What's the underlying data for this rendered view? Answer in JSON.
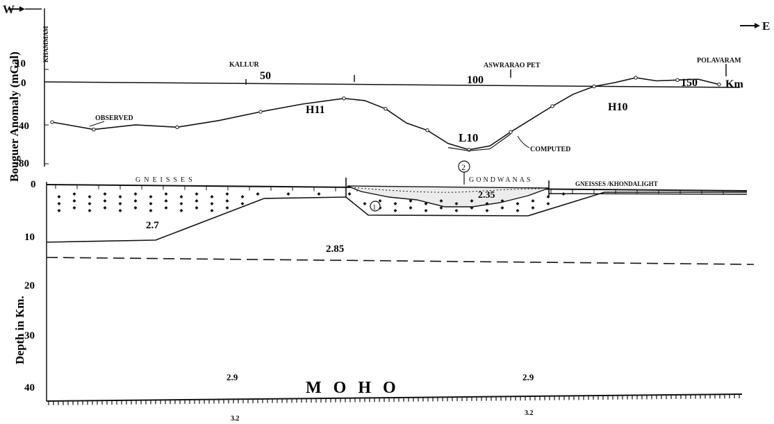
{
  "direction": {
    "west": "W",
    "east": "E"
  },
  "gravity_panel": {
    "ylabel": "Bouguer Anomaly (mGal)",
    "yticks": [
      "10",
      "0",
      "-40",
      "-80"
    ],
    "xticks": [
      "50",
      "100",
      "150"
    ],
    "xunit": "Km",
    "places": [
      "KHAMMAM",
      "KALLUR",
      "ASWRARAO PET",
      "POLAVARAM"
    ],
    "features": [
      "H11",
      "L10",
      "H10"
    ],
    "observed_label": "OBSERVED",
    "computed_label": "COMPUTED"
  },
  "section_panel": {
    "ylabel": "Depth in Km.",
    "yticks": [
      "0",
      "10",
      "20",
      "30",
      "40"
    ],
    "units": [
      "GNEISSES",
      "GONDWANAS",
      "GNEISSES /KHONDALIGHT"
    ],
    "densities": [
      "2.7",
      "2.85",
      "2.35",
      "2.9",
      "2.9",
      "3.2",
      "3.2"
    ],
    "body_markers": [
      "1",
      "2"
    ],
    "moho_label": "MOHO"
  },
  "chart_data": {
    "type": "line",
    "xlabel": "Km",
    "ylabel": "Bouguer Anomaly (mGal)",
    "ylim": [
      -80,
      10
    ],
    "series": [
      {
        "name": "OBSERVED",
        "x": [
          0,
          10,
          20,
          30,
          40,
          50,
          60,
          70,
          75,
          80,
          85,
          90,
          95,
          100,
          105,
          110,
          115,
          120,
          125,
          130,
          135,
          140,
          145,
          150,
          155,
          160
        ],
        "values": [
          -40,
          -47,
          -42,
          -44,
          -37,
          -28,
          -20,
          -14,
          -16,
          -24,
          -38,
          -45,
          -58,
          -64,
          -60,
          -46,
          -33,
          -20,
          -8,
          0,
          4,
          9,
          6,
          7,
          8,
          3
        ]
      },
      {
        "name": "COMPUTED",
        "x": [
          95,
          100,
          105,
          110
        ],
        "values": [
          -62,
          -65,
          -63,
          -48
        ]
      }
    ]
  }
}
